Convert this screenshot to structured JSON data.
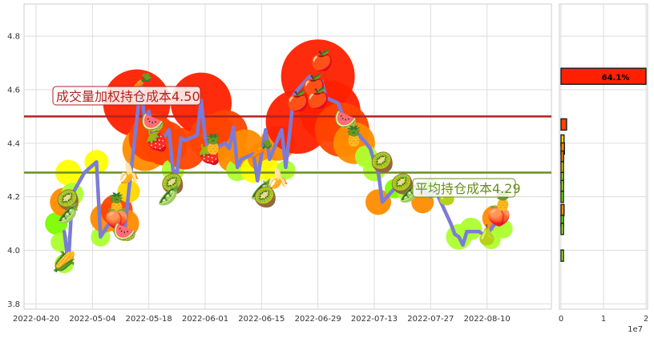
{
  "chart_data": [
    {
      "type": "line",
      "y_ticks": [
        "3.8",
        "4.0",
        "4.2",
        "4.4",
        "4.6",
        "4.8"
      ],
      "ylim": [
        3.78,
        4.92
      ],
      "x_ticks": [
        "2022-04-20",
        "2022-05-04",
        "2022-05-18",
        "2022-06-01",
        "2022-06-15",
        "2022-06-29",
        "2022-07-13",
        "2022-07-27",
        "2022-08-10"
      ],
      "xlim": [
        "2022-04-17",
        "2022-08-26"
      ],
      "grid": true,
      "series": [
        {
          "color": "#7b7bd8",
          "points": [
            [
              "2022-04-27",
              4.07
            ],
            [
              "2022-04-28",
              3.95
            ],
            [
              "2022-04-29",
              4.21
            ],
            [
              "2022-05-02",
              4.29
            ],
            [
              "2022-05-05",
              4.33
            ],
            [
              "2022-05-06",
              4.05
            ],
            [
              "2022-05-09",
              4.12
            ],
            [
              "2022-05-10",
              4.13
            ],
            [
              "2022-05-11",
              4.08
            ],
            [
              "2022-05-12",
              4.07
            ],
            [
              "2022-05-13",
              4.22
            ],
            [
              "2022-05-16",
              4.62
            ],
            [
              "2022-05-17",
              4.48
            ],
            [
              "2022-05-18",
              4.52
            ],
            [
              "2022-05-19",
              4.44
            ],
            [
              "2022-05-20",
              4.38
            ],
            [
              "2022-05-23",
              4.45
            ],
            [
              "2022-05-24",
              4.3
            ],
            [
              "2022-05-25",
              4.29
            ],
            [
              "2022-05-26",
              4.42
            ],
            [
              "2022-05-27",
              4.41
            ],
            [
              "2022-05-30",
              4.43
            ],
            [
              "2022-05-31",
              4.56
            ],
            [
              "2022-06-01",
              4.42
            ],
            [
              "2022-06-02",
              4.37
            ],
            [
              "2022-06-06",
              4.4
            ],
            [
              "2022-06-07",
              4.38
            ],
            [
              "2022-06-08",
              4.46
            ],
            [
              "2022-06-09",
              4.31
            ],
            [
              "2022-06-10",
              4.34
            ],
            [
              "2022-06-13",
              4.36
            ],
            [
              "2022-06-14",
              4.26
            ],
            [
              "2022-06-15",
              4.36
            ],
            [
              "2022-06-16",
              4.45
            ],
            [
              "2022-06-17",
              4.34
            ],
            [
              "2022-06-20",
              4.45
            ],
            [
              "2022-06-21",
              4.31
            ],
            [
              "2022-06-22",
              4.44
            ],
            [
              "2022-06-23",
              4.58
            ],
            [
              "2022-06-24",
              4.6
            ],
            [
              "2022-06-27",
              4.65
            ],
            [
              "2022-06-28",
              4.54
            ],
            [
              "2022-06-29",
              4.59
            ],
            [
              "2022-06-30",
              4.63
            ],
            [
              "2022-07-01",
              4.57
            ],
            [
              "2022-07-04",
              4.55
            ],
            [
              "2022-07-05",
              4.51
            ],
            [
              "2022-07-06",
              4.5
            ],
            [
              "2022-07-07",
              4.47
            ],
            [
              "2022-07-08",
              4.45
            ],
            [
              "2022-07-11",
              4.4
            ],
            [
              "2022-07-12",
              4.38
            ],
            [
              "2022-07-13",
              4.33
            ],
            [
              "2022-07-14",
              4.29
            ],
            [
              "2022-07-15",
              4.18
            ],
            [
              "2022-07-18",
              4.23
            ],
            [
              "2022-07-19",
              4.25
            ],
            [
              "2022-07-20",
              4.26
            ],
            [
              "2022-07-21",
              4.24
            ],
            [
              "2022-07-22",
              4.22
            ],
            [
              "2022-07-25",
              4.23
            ],
            [
              "2022-07-26",
              4.21
            ],
            [
              "2022-07-27",
              4.2
            ],
            [
              "2022-07-28",
              4.23
            ],
            [
              "2022-08-01",
              4.1
            ],
            [
              "2022-08-02",
              4.06
            ],
            [
              "2022-08-03",
              4.05
            ],
            [
              "2022-08-04",
              4.02
            ],
            [
              "2022-08-05",
              4.07
            ],
            [
              "2022-08-08",
              4.07
            ],
            [
              "2022-08-09",
              4.06
            ],
            [
              "2022-08-10",
              4.06
            ],
            [
              "2022-08-11",
              4.08
            ],
            [
              "2022-08-12",
              4.1
            ],
            [
              "2022-08-15",
              4.12
            ]
          ]
        }
      ],
      "reference_lines": [
        {
          "value": 4.5,
          "label": "成交量加权持仓成本4.50",
          "color": "#b22222"
        },
        {
          "value": 4.29,
          "label": "平均持仓成本4.29",
          "color": "#6b8e23"
        }
      ]
    },
    {
      "type": "bar",
      "orientation": "horizontal",
      "x_ticks": [
        "0",
        "1",
        "2"
      ],
      "xlim": [
        0,
        2
      ],
      "x_scale_note": "1e7",
      "bars": [
        {
          "price": 4.65,
          "value": 20000000,
          "color": "#ff2000",
          "label": "64.1%"
        },
        {
          "price": 4.47,
          "value": 1300000,
          "color": "#ff4500"
        },
        {
          "price": 4.41,
          "value": 700000,
          "color": "#ffd700"
        },
        {
          "price": 4.38,
          "value": 800000,
          "color": "#ff8c00"
        },
        {
          "price": 4.35,
          "value": 600000,
          "color": "#ff8c00"
        },
        {
          "price": 4.31,
          "value": 500000,
          "color": "#ffd700"
        },
        {
          "price": 4.27,
          "value": 300000,
          "color": "#adff2f"
        },
        {
          "price": 4.24,
          "value": 200000,
          "color": "#adff2f"
        },
        {
          "price": 4.2,
          "value": 300000,
          "color": "#7cfc00"
        },
        {
          "price": 4.15,
          "value": 700000,
          "color": "#ff8c00"
        },
        {
          "price": 4.11,
          "value": 400000,
          "color": "#7cfc00"
        },
        {
          "price": 4.08,
          "value": 300000,
          "color": "#adff2f"
        },
        {
          "price": 3.98,
          "value": 500000,
          "color": "#adff2f"
        }
      ]
    }
  ],
  "decorations": {
    "blobs": [
      [
        "2022-04-25",
        4.1,
        14,
        "#7cfc00"
      ],
      [
        "2022-04-26",
        4.03,
        12,
        "#adff2f"
      ],
      [
        "2022-04-27",
        3.95,
        12,
        "#adff2f"
      ],
      [
        "2022-04-27",
        4.18,
        18,
        "#ff8c00"
      ],
      [
        "2022-04-28",
        4.29,
        16,
        "#ffff00"
      ],
      [
        "2022-04-29",
        4.21,
        14,
        "#adff2f"
      ],
      [
        "2022-05-05",
        4.33,
        15,
        "#ffff00"
      ],
      [
        "2022-05-06",
        4.05,
        12,
        "#adff2f"
      ],
      [
        "2022-05-07",
        4.12,
        18,
        "#ff8c00"
      ],
      [
        "2022-05-10",
        4.15,
        20,
        "#ff4500"
      ],
      [
        "2022-05-12",
        4.1,
        18,
        "#ff8c00"
      ],
      [
        "2022-05-13",
        4.22,
        14,
        "#ffd700"
      ],
      [
        "2022-05-15",
        4.55,
        42,
        "#ff2000"
      ],
      [
        "2022-05-17",
        4.38,
        28,
        "#ff8c00"
      ],
      [
        "2022-05-19",
        4.42,
        30,
        "#ff4500"
      ],
      [
        "2022-05-22",
        4.4,
        28,
        "#ff4500"
      ],
      [
        "2022-05-24",
        4.3,
        14,
        "#adff2f"
      ],
      [
        "2022-05-27",
        4.38,
        26,
        "#ff4500"
      ],
      [
        "2022-05-31",
        4.55,
        38,
        "#ff2000"
      ],
      [
        "2022-06-03",
        4.42,
        30,
        "#ff4500"
      ],
      [
        "2022-06-06",
        4.44,
        28,
        "#ff4500"
      ],
      [
        "2022-06-08",
        4.35,
        20,
        "#ff8c00"
      ],
      [
        "2022-06-09",
        4.3,
        14,
        "#adff2f"
      ],
      [
        "2022-06-11",
        4.38,
        24,
        "#ff8c00"
      ],
      [
        "2022-06-13",
        4.3,
        16,
        "#ffff00"
      ],
      [
        "2022-06-15",
        4.35,
        18,
        "#ff8c00"
      ],
      [
        "2022-06-17",
        4.3,
        14,
        "#ffff00"
      ],
      [
        "2022-06-19",
        4.4,
        22,
        "#ff8c00"
      ],
      [
        "2022-06-21",
        4.3,
        12,
        "#adff2f"
      ],
      [
        "2022-06-24",
        4.48,
        40,
        "#ff2000"
      ],
      [
        "2022-06-29",
        4.65,
        46,
        "#ff2000"
      ],
      [
        "2022-07-02",
        4.52,
        38,
        "#ff2000"
      ],
      [
        "2022-07-05",
        4.45,
        34,
        "#ff4500"
      ],
      [
        "2022-07-08",
        4.4,
        26,
        "#ff8c00"
      ],
      [
        "2022-07-11",
        4.35,
        14,
        "#adff2f"
      ],
      [
        "2022-07-13",
        4.3,
        14,
        "#adff2f"
      ],
      [
        "2022-07-14",
        4.18,
        16,
        "#ff8c00"
      ],
      [
        "2022-07-18",
        4.23,
        12,
        "#7cfc00"
      ],
      [
        "2022-07-21",
        4.22,
        12,
        "#adff2f"
      ],
      [
        "2022-07-25",
        4.18,
        14,
        "#ff8c00"
      ],
      [
        "2022-07-27",
        4.23,
        12,
        "#7cfc00"
      ],
      [
        "2022-08-03",
        4.05,
        16,
        "#adff2f"
      ],
      [
        "2022-08-06",
        4.08,
        14,
        "#adff2f"
      ],
      [
        "2022-08-12",
        4.12,
        16,
        "#ff8c00"
      ],
      [
        "2022-08-14",
        4.08,
        12,
        "#adff2f"
      ],
      [
        "2022-08-11",
        4.04,
        12,
        "#adff2f"
      ]
    ],
    "fruits": [
      [
        "2022-04-27",
        3.96,
        "🌽"
      ],
      [
        "2022-04-28",
        4.19,
        "🥝"
      ],
      [
        "2022-04-28",
        4.14,
        "🫛"
      ],
      [
        "2022-05-10",
        4.18,
        "🍍"
      ],
      [
        "2022-05-10",
        4.12,
        "🍑"
      ],
      [
        "2022-05-12",
        4.07,
        "🍉"
      ],
      [
        "2022-05-13",
        4.29,
        "🍌"
      ],
      [
        "2022-05-16",
        4.63,
        "🥕"
      ],
      [
        "2022-05-19",
        4.48,
        "🍉"
      ],
      [
        "2022-05-20",
        4.41,
        "🍓"
      ],
      [
        "2022-05-24",
        4.25,
        "🥝"
      ],
      [
        "2022-05-23",
        4.21,
        "🫛"
      ],
      [
        "2022-06-02",
        4.36,
        "🍓"
      ],
      [
        "2022-06-03",
        4.4,
        "🍍"
      ],
      [
        "2022-06-15",
        4.38,
        "🥕"
      ],
      [
        "2022-06-15",
        4.23,
        "🫛"
      ],
      [
        "2022-06-16",
        4.2,
        "🥝"
      ],
      [
        "2022-06-19",
        4.27,
        "🍌"
      ],
      [
        "2022-06-30",
        4.71,
        "🍎"
      ],
      [
        "2022-06-28",
        4.62,
        "🍎"
      ],
      [
        "2022-06-29",
        4.57,
        "🍎"
      ],
      [
        "2022-06-24",
        4.56,
        "🍎"
      ],
      [
        "2022-07-06",
        4.49,
        "🍉"
      ],
      [
        "2022-07-08",
        4.43,
        "🍍"
      ],
      [
        "2022-07-15",
        4.33,
        "🥝"
      ],
      [
        "2022-07-20",
        4.25,
        "🥝"
      ],
      [
        "2022-07-22",
        4.22,
        "🫛"
      ],
      [
        "2022-07-31",
        4.21,
        "🍐"
      ],
      [
        "2022-08-10",
        4.06,
        "🍐"
      ],
      [
        "2022-08-13",
        4.13,
        "🍑"
      ],
      [
        "2022-08-14",
        4.19,
        "🍍"
      ]
    ]
  }
}
